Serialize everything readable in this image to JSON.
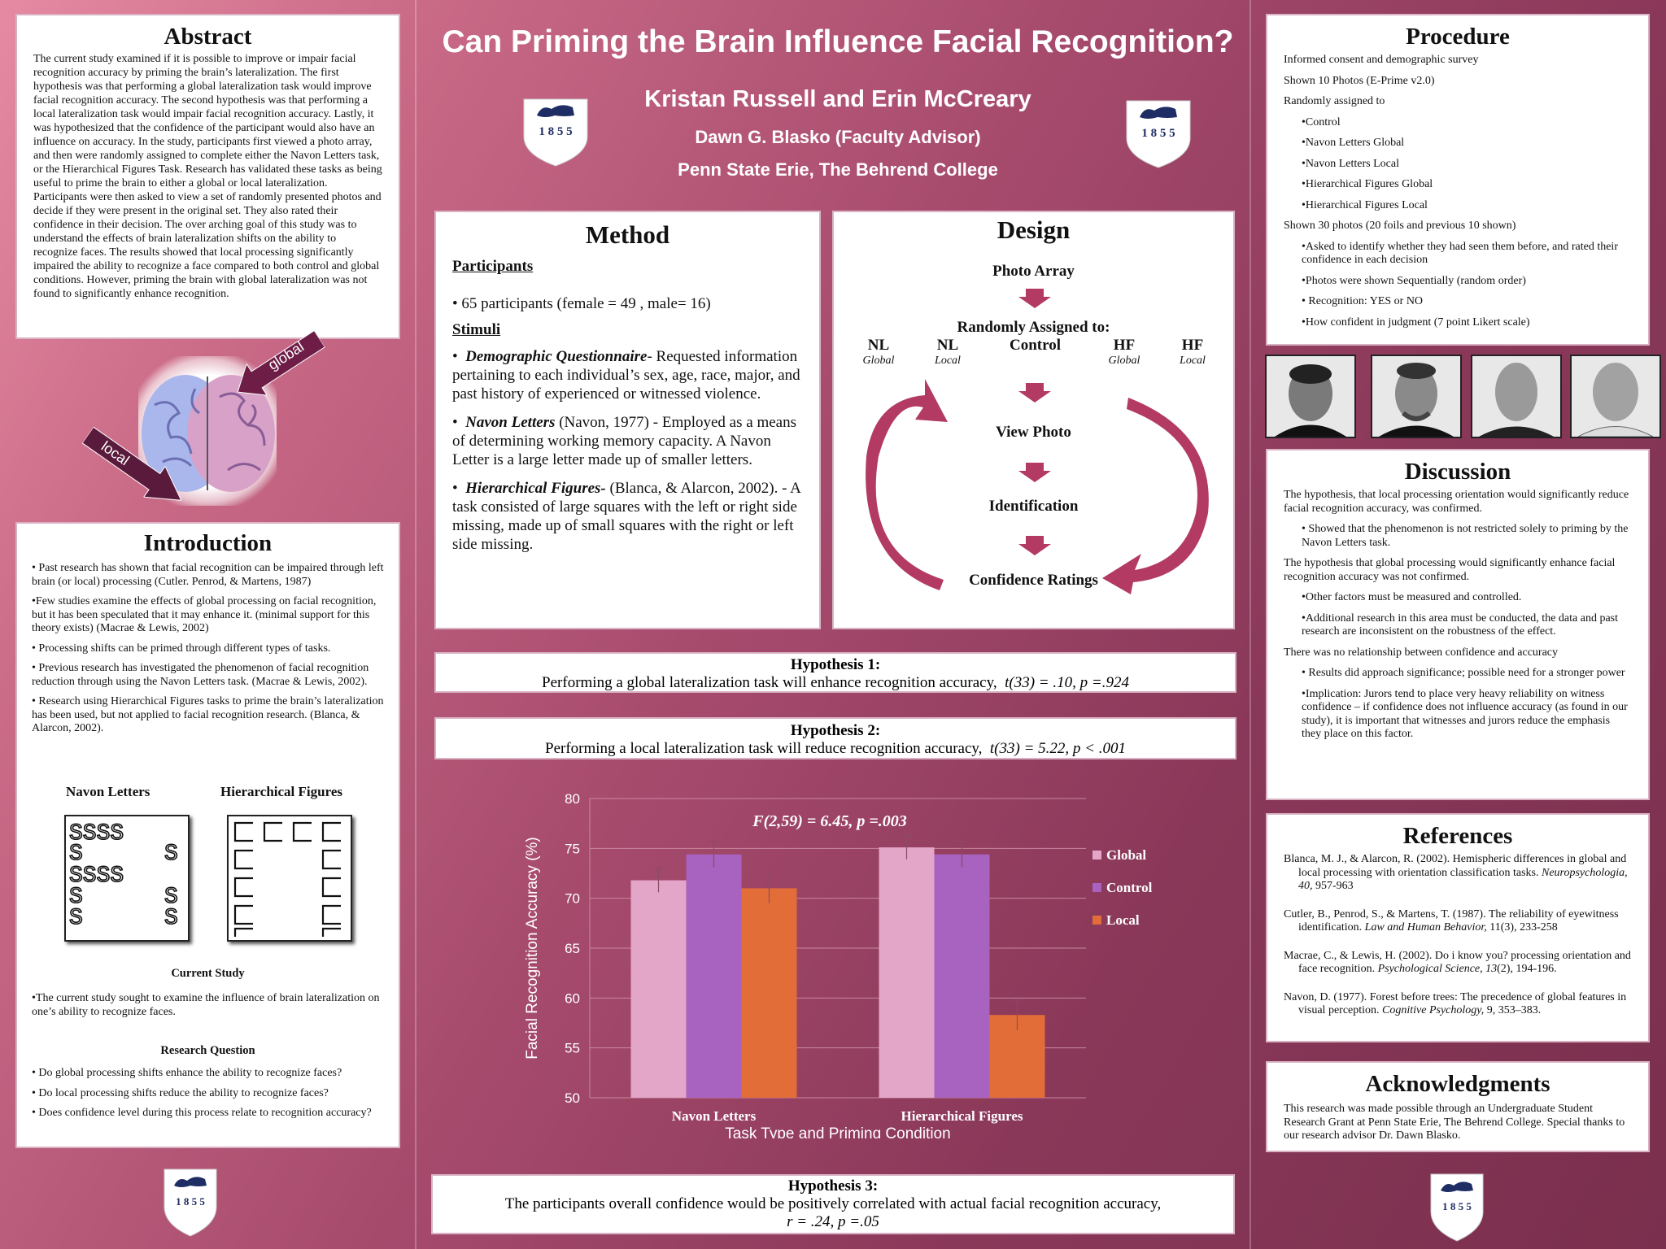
{
  "title": "Can Priming the Brain Influence Facial Recognition?",
  "authors": "Kristan Russell and Erin McCreary",
  "advisor": "Dawn G. Blasko  (Faculty Advisor)",
  "institution": "Penn State Erie, The Behrend College",
  "logo_year": "1 8 5 5",
  "abstract": {
    "heading": "Abstract",
    "text": "The current study examined if it is possible to improve or impair facial recognition accuracy by priming the brain’s lateralization.  The first hypothesis was that performing a global lateralization task would improve facial recognition accuracy.  The second hypothesis was that performing a local lateralization task would impair facial recognition accuracy.  Lastly, it was hypothesized that the confidence of the participant would also have an influence on accuracy.  In the study, participants first viewed a photo array, and then were randomly assigned to complete either the Navon Letters task, or the Hierarchical Figures Task.  Research has validated these tasks as being useful to prime the brain to either a global or local lateralization. Participants were then asked to view a set of randomly presented photos and decide if they were present in the original set.  They also rated their confidence in their decision.  The over arching goal of this study was to understand the effects of brain lateralization shifts on the ability to recognize faces. The results showed that local processing significantly impaired the ability to recognize a face compared to both control and global conditions.  However, priming the brain with global lateralization was not found to significantly enhance recognition."
  },
  "brain": {
    "global_label": "global",
    "local_label": "local"
  },
  "introduction": {
    "heading": "Introduction",
    "bullets": [
      "•  Past research has shown that facial recognition can be impaired through left brain (or local) processing (Cutler. Penrod, & Martens, 1987)",
      "•Few studies examine the effects of global processing on facial recognition, but it has been speculated that it may enhance it. (minimal support for this theory exists) (Macrae & Lewis, 2002)",
      "•  Processing shifts can be primed through different types of tasks.",
      "•  Previous research has investigated the phenomenon of facial recognition reduction through using the Navon Letters task. (Macrae & Lewis, 2002).",
      "•  Research using Hierarchical Figures tasks to prime the brain’s lateralization has been used, but not applied to facial recognition research. (Blanca, & Alarcon, 2002)."
    ],
    "navon_label": "Navon Letters",
    "hf_label": "Hierarchical Figures",
    "current_heading": "Current Study",
    "current_text": "•The current study sought to examine the influence of brain lateralization on one’s ability to recognize faces.",
    "rq_heading": "Research Question",
    "rq": [
      "•  Do global processing shifts enhance the ability to recognize faces?",
      "•  Do local processing shifts reduce the ability to recognize faces?",
      "•  Does confidence level during this process relate to recognition accuracy?"
    ]
  },
  "method": {
    "heading": "Method",
    "participants_heading": "Participants",
    "participants": "•  65 participants (female = 49 , male= 16)",
    "stimuli_heading": "Stimuli",
    "stimuli": [
      {
        "name": "Demographic Questionnaire",
        "text": "- Requested information pertaining to each individual’s sex, age, race, major, and past history of experienced or witnessed violence."
      },
      {
        "name": "Navon Letters",
        "text": " (Navon, 1977) - Employed as a means of determining working memory capacity.  A Navon Letter is a large letter made up of smaller letters."
      },
      {
        "name": "Hierarchical Figures-",
        "text": " (Blanca, & Alarcon, 2002). - A task consisted of large squares with the left or right side missing, made up of small squares with the right or left side missing."
      }
    ]
  },
  "design": {
    "heading": "Design",
    "photo_array": "Photo Array",
    "assigned": "Randomly Assigned to:",
    "groups": [
      {
        "label": "NL",
        "sub": "Global"
      },
      {
        "label": "NL",
        "sub": "Local"
      },
      {
        "label": "Control",
        "sub": ""
      },
      {
        "label": "HF",
        "sub": "Global"
      },
      {
        "label": "HF",
        "sub": "Local"
      }
    ],
    "view": "View Photo",
    "identification": "Identification",
    "confidence": "Confidence Ratings"
  },
  "hypotheses": {
    "h1_title": "Hypothesis 1:",
    "h1_text": "Performing a global lateralization task will enhance recognition accuracy,",
    "h1_stat": "t(33) = .10, p =.924",
    "h2_title": "Hypothesis 2:",
    "h2_text": "Performing a local lateralization task will reduce recognition accuracy,",
    "h2_stat": "t(33) = 5.22, p < .001",
    "h3_title": "Hypothesis 3:",
    "h3_text": "The participants overall confidence would be positively correlated with actual facial recognition accuracy,",
    "h3_stat": "r = .24, p =.05"
  },
  "chart_data": {
    "type": "bar",
    "title": "",
    "annotation": "F(2,59) = 6.45, p =.003",
    "xlabel": "Task Type and Priming Condition",
    "ylabel": "Facial Recognition Accuracy (%)",
    "ylim": [
      50,
      80
    ],
    "yticks": [
      "50",
      "55",
      "60",
      "65",
      "70",
      "75",
      "80"
    ],
    "categories": [
      "Navon Letters",
      "Hierarchical Figures"
    ],
    "series": [
      {
        "name": "Global",
        "color": "#e3a6c9",
        "values": [
          71.8,
          75.1
        ],
        "errors": [
          1.2,
          1.2
        ]
      },
      {
        "name": "Control",
        "color": "#a862bf",
        "values": [
          74.4,
          74.4
        ],
        "errors": [
          1.3,
          1.3
        ]
      },
      {
        "name": "Local",
        "color": "#e26d38",
        "values": [
          71.0,
          58.3
        ],
        "errors": [
          1.5,
          1.5
        ]
      }
    ],
    "legend": "right"
  },
  "procedure": {
    "heading": "Procedure",
    "items": [
      {
        "text": "Informed consent and demographic survey",
        "indent": false
      },
      {
        "text": "Shown 10 Photos (E-Prime v2.0)",
        "indent": false
      },
      {
        "text": "Randomly assigned to",
        "indent": false
      },
      {
        "text": "•Control",
        "indent": true
      },
      {
        "text": "•Navon Letters Global",
        "indent": true
      },
      {
        "text": "•Navon Letters Local",
        "indent": true
      },
      {
        "text": "•Hierarchical Figures Global",
        "indent": true
      },
      {
        "text": "•Hierarchical Figures Local",
        "indent": true
      },
      {
        "text": "Shown 30 photos (20 foils and previous 10 shown)",
        "indent": false
      },
      {
        "text": "•Asked to identify whether they had seen them before, and rated their confidence in each decision",
        "indent": true
      },
      {
        "text": "•Photos were shown Sequentially (random order)",
        "indent": true
      },
      {
        "text": "•  Recognition: YES or NO",
        "indent": true
      },
      {
        "text": "•How confident in judgment (7 point Likert scale)",
        "indent": true
      }
    ]
  },
  "discussion": {
    "heading": "Discussion",
    "items": [
      {
        "text": "The hypothesis, that local processing orientation would significantly reduce facial recognition accuracy, was confirmed.",
        "indent": false
      },
      {
        "text": "•  Showed that  the phenomenon is not restricted solely to priming by the Navon Letters task.",
        "indent": true
      },
      {
        "text": "The hypothesis that global processing would significantly enhance facial recognition accuracy was not confirmed.",
        "indent": false
      },
      {
        "text": "•Other factors must be measured and controlled.",
        "indent": true
      },
      {
        "text": "•Additional research in this area must be conducted, the data and past research are inconsistent on the robustness of the effect.",
        "indent": true
      },
      {
        "text": "There was no relationship between confidence and accuracy",
        "indent": false
      },
      {
        "text": "•  Results did approach significance; possible need for a stronger power",
        "indent": true
      },
      {
        "text": "•Implication: Jurors tend to place very heavy reliability on witness confidence – if confidence does not influence accuracy (as found in our study), it is important that witnesses and jurors reduce the emphasis they place on this factor.",
        "indent": true
      }
    ]
  },
  "references": {
    "heading": "References",
    "items": [
      {
        "main": "Blanca, M. J., & Alarcon, R. (2002). Hemispheric differences in global and local processing with orientation classification tasks. ",
        "ital": "Neuropsychologia, 40,",
        "tail": " 957-963"
      },
      {
        "main": "Cutler, B., Penrod, S., & Martens, T. (1987). The reliability of eyewitness identification. ",
        "ital": "Law and Human Behavior,",
        "tail": " 11(3), 233-258"
      },
      {
        "main": "Macrae, C., & Lewis, H. (2002). Do i know you? processing orientation and face recognition. ",
        "ital": "Psychological Science, 13",
        "tail": "(2), 194-196."
      },
      {
        "main": "Navon, D. (1977). Forest before trees: The precedence of global features in visual perception. ",
        "ital": "Cognitive Psychology,",
        "tail": " 9, 353–383."
      }
    ]
  },
  "acknowledgments": {
    "heading": "Acknowledgments",
    "text": "This research was made possible through an Undergraduate Student Research Grant at Penn State Erie, The Behrend College. Special thanks to our research advisor Dr. Dawn Blasko."
  }
}
